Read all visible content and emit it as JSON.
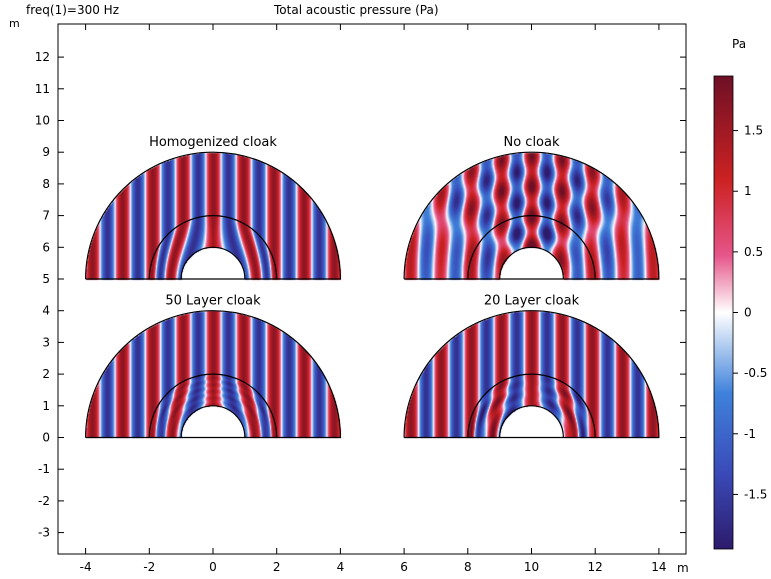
{
  "header": {
    "left_label": "freq(1)=300 Hz",
    "title": "Total acoustic pressure (Pa)",
    "y_unit": "m",
    "x_unit": "m",
    "colorbar_unit": "Pa"
  },
  "chart_data": {
    "type": "heatmap",
    "title": "Total acoustic pressure (Pa)",
    "subtitle": "freq(1)=300 Hz",
    "xlabel": "m",
    "ylabel": "m",
    "xlim": [
      -4.6,
      14.9
    ],
    "ylim": [
      -3.6,
      13.3
    ],
    "x_ticks": [
      -4,
      -2,
      0,
      2,
      4,
      6,
      8,
      10,
      12,
      14
    ],
    "y_ticks": [
      -3,
      -2,
      -1,
      0,
      1,
      2,
      3,
      4,
      5,
      6,
      7,
      8,
      9,
      10,
      11,
      12
    ],
    "grid": false,
    "colormap": "Wave (blue-white-red)",
    "color_range": [
      -1.95,
      1.95
    ],
    "colorbar_ticks": [
      -1.5,
      -1,
      -0.5,
      0,
      0.5,
      1,
      1.5
    ],
    "colors": {
      "min": "#2d1b6b",
      "mid": "#ffffff",
      "max": "#6e1026",
      "blue": "#3b64d6",
      "red": "#cf2424"
    },
    "panels": [
      {
        "label": "Homogenized cloak",
        "center": [
          0,
          5
        ],
        "outer_radius": 4,
        "cloak_radius": 2,
        "inner_radius": 1,
        "style": "homogenized"
      },
      {
        "label": "No cloak",
        "center": [
          10,
          5
        ],
        "outer_radius": 4,
        "cloak_radius": 2,
        "inner_radius": 1,
        "style": "none"
      },
      {
        "label": "50 Layer cloak",
        "center": [
          0,
          0
        ],
        "outer_radius": 4,
        "cloak_radius": 2,
        "inner_radius": 1,
        "style": "layer50"
      },
      {
        "label": "20 Layer cloak",
        "center": [
          10,
          0
        ],
        "outer_radius": 4,
        "cloak_radius": 2,
        "inner_radius": 1,
        "style": "layer20"
      }
    ]
  }
}
